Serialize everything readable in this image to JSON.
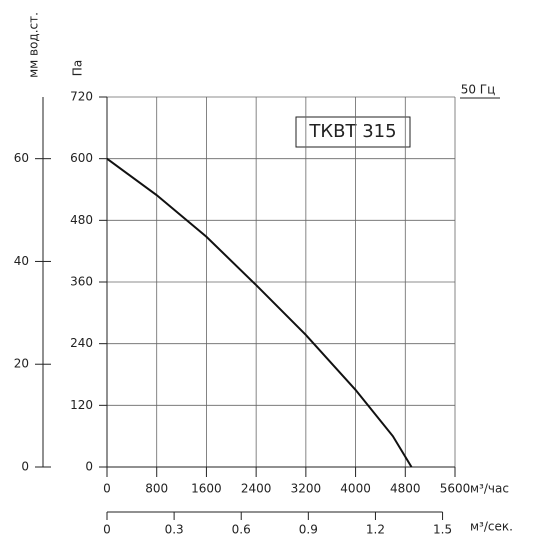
{
  "chart_data": {
    "type": "line",
    "title": "ТКВТ 315",
    "subtitle": "50 Гц",
    "xlabel": "м³/час",
    "ylabel": "Па",
    "y2label": "мм вод.ст.",
    "x2label": "м³/сек.",
    "x": [
      0,
      800,
      1600,
      2400,
      3200,
      4000,
      4600,
      4900
    ],
    "series": [
      {
        "color": "#111111",
        "values": [
          600,
          529,
          448,
          354,
          257,
          150,
          60,
          0
        ]
      }
    ],
    "xlim": [
      0,
      5600
    ],
    "xticks": [
      0,
      800,
      1600,
      2400,
      3200,
      4000,
      4800,
      5600
    ],
    "ylim": [
      0,
      720
    ],
    "yticks": [
      0,
      120,
      240,
      360,
      480,
      600,
      720
    ],
    "y2lim": [
      0,
      72
    ],
    "y2ticks": [
      0,
      20,
      40,
      60
    ],
    "x2lim": [
      0,
      1.5556
    ],
    "x2ticks": [
      0,
      0.3,
      0.6,
      0.9,
      1.2,
      1.5
    ],
    "grid": true
  }
}
